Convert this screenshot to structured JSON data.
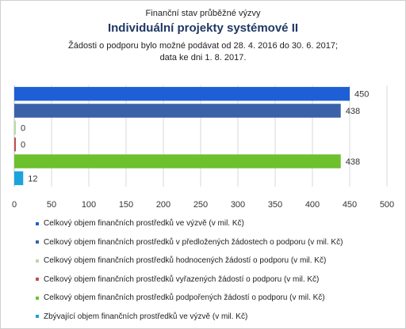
{
  "chart_data": {
    "type": "bar",
    "orientation": "horizontal",
    "title_lines": [
      "Finanční stav průběžné výzvy",
      "Individuální projekty systémové II",
      "Žádosti o podporu bylo možné  podávat od 28. 4. 2016 do 30. 6. 2017;",
      "data ke dni 1. 8. 2017."
    ],
    "xlim": [
      0,
      500
    ],
    "x_ticks": [
      "0",
      "50",
      "100",
      "150",
      "200",
      "250",
      "300",
      "350",
      "400",
      "450",
      "500"
    ],
    "grid": true,
    "legend_position": "bottom",
    "series": [
      {
        "name": "Celkový objem finančních prostředků ve výzvě (v mil. Kč)",
        "value": 450,
        "label": "450",
        "color": "#1f5fd6"
      },
      {
        "name": "Celkový objem finančních prostředků v předložených žádostech o podporu (v mil. Kč)",
        "value": 438,
        "label": "438",
        "color": "#3a62a8"
      },
      {
        "name": "Celkový objem finančních prostředků hodnocených žádostí o podporu (v mil. Kč)",
        "value": 0,
        "label": "0",
        "color": "#b9d9a6"
      },
      {
        "name": "Celkový objem finančních prostředků vyřazených žádostí o podporu (v mil. Kč)",
        "value": 0,
        "label": "0",
        "color": "#c0504d"
      },
      {
        "name": "Celkový objem finančních prostředků podpořených žádostí o podporu (v mil. Kč)",
        "value": 438,
        "label": "438",
        "color": "#6cc12c"
      },
      {
        "name": "Zbývající objem finančních prostředků ve výzvě (v mil. Kč)",
        "value": 12,
        "label": "12",
        "color": "#1ba3de"
      }
    ]
  }
}
